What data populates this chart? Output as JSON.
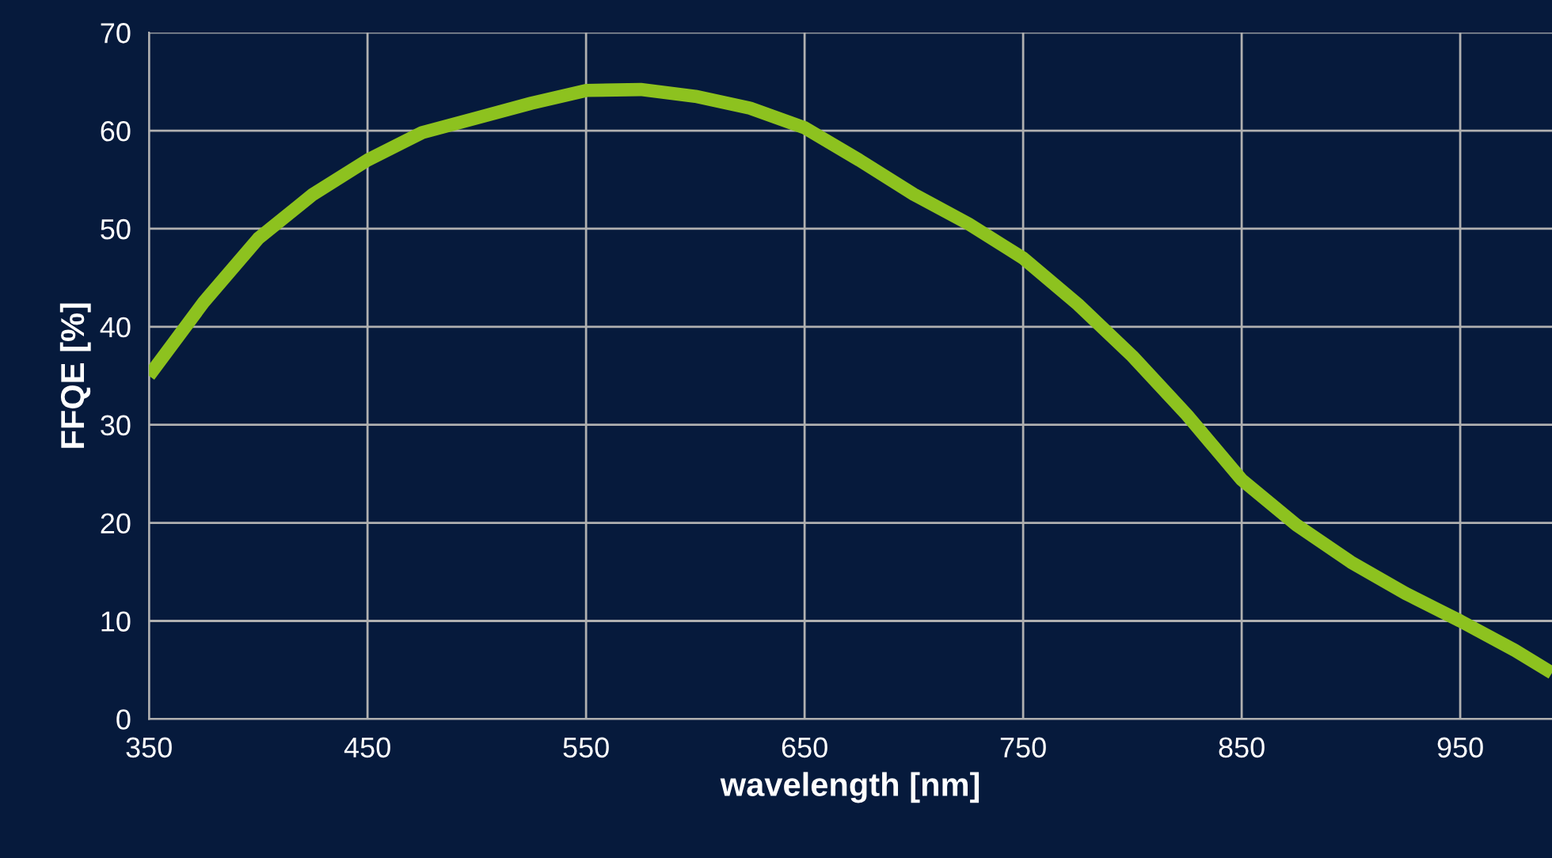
{
  "chart_data": {
    "type": "line",
    "xlabel": "wavelength [nm]",
    "ylabel": "FFQE [%]",
    "x": [
      350,
      375,
      400,
      425,
      450,
      475,
      500,
      525,
      550,
      575,
      600,
      625,
      650,
      675,
      700,
      725,
      750,
      775,
      800,
      825,
      850,
      875,
      900,
      925,
      950,
      975,
      992
    ],
    "series": [
      {
        "color": "#8dc21f",
        "values": [
          35,
          42.5,
          49,
          53.5,
          57,
          59.8,
          61.3,
          62.8,
          64.1,
          64.2,
          63.5,
          62.3,
          60.3,
          57,
          53.5,
          50.5,
          47,
          42.3,
          37,
          31,
          24.4,
          19.8,
          16,
          12.8,
          10,
          7,
          4.7
        ]
      }
    ],
    "xlim": [
      350,
      992
    ],
    "ylim": [
      0,
      70
    ],
    "xticks": [
      350,
      450,
      550,
      650,
      750,
      850,
      950
    ],
    "yticks": [
      0,
      10,
      20,
      30,
      40,
      50,
      60,
      70
    ],
    "grid": true,
    "marker": "none",
    "line_style": "solid"
  }
}
